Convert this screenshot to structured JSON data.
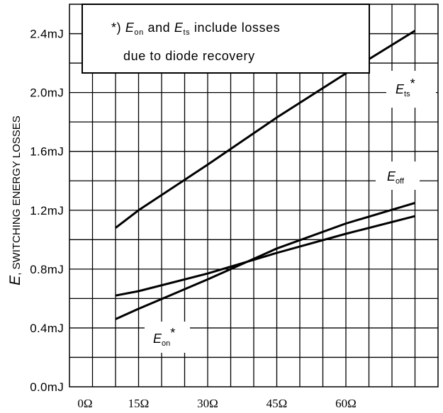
{
  "chart_data": {
    "type": "line",
    "title": "",
    "xlabel": "",
    "ylabel": "E, SWITCHING ENERGY LOSSES",
    "ylabel_symbol": "E",
    "ylabel_rest": ", SWITCHING ENERGY LOSSES",
    "x_tick_values": [
      0,
      15,
      30,
      45,
      60
    ],
    "x_tick_labels": [
      "0Ω",
      "15Ω",
      "30Ω",
      "45Ω",
      "60Ω"
    ],
    "y_tick_values": [
      0.0,
      0.4,
      0.8,
      1.2,
      1.6,
      2.0,
      2.4
    ],
    "y_tick_labels": [
      "0.0mJ",
      "0.4mJ",
      "0.8mJ",
      "1.2mJ",
      "1.6mJ",
      "2.0mJ",
      "2.4mJ"
    ],
    "xlim": [
      0,
      80
    ],
    "ylim": [
      0,
      2.6
    ],
    "grid": true,
    "series": [
      {
        "name": "Ets*",
        "x": [
          10,
          15,
          30,
          45,
          60,
          75
        ],
        "y": [
          1.08,
          1.2,
          1.51,
          1.83,
          2.13,
          2.42
        ]
      },
      {
        "name": "Eoff",
        "x": [
          10,
          15,
          30,
          45,
          60,
          75
        ],
        "y": [
          0.62,
          0.65,
          0.77,
          0.91,
          1.04,
          1.16
        ]
      },
      {
        "name": "Eon*",
        "x": [
          10,
          15,
          30,
          45,
          60,
          75
        ],
        "y": [
          0.46,
          0.53,
          0.73,
          0.94,
          1.11,
          1.25
        ]
      }
    ],
    "series_labels": {
      "ets": {
        "main": "E",
        "sub": "ts",
        "suffix": "*"
      },
      "eoff": {
        "main": "E",
        "sub": "off",
        "suffix": ""
      },
      "eon": {
        "main": "E",
        "sub": "on",
        "suffix": "*"
      }
    },
    "note": {
      "line1_prefix": "*) ",
      "line1_e1": "E",
      "line1_sub1": "on",
      "line1_mid": " and ",
      "line1_e2": "E",
      "line1_sub2": "ts",
      "line1_suffix": " include losses",
      "line2": "due to diode recovery"
    }
  }
}
